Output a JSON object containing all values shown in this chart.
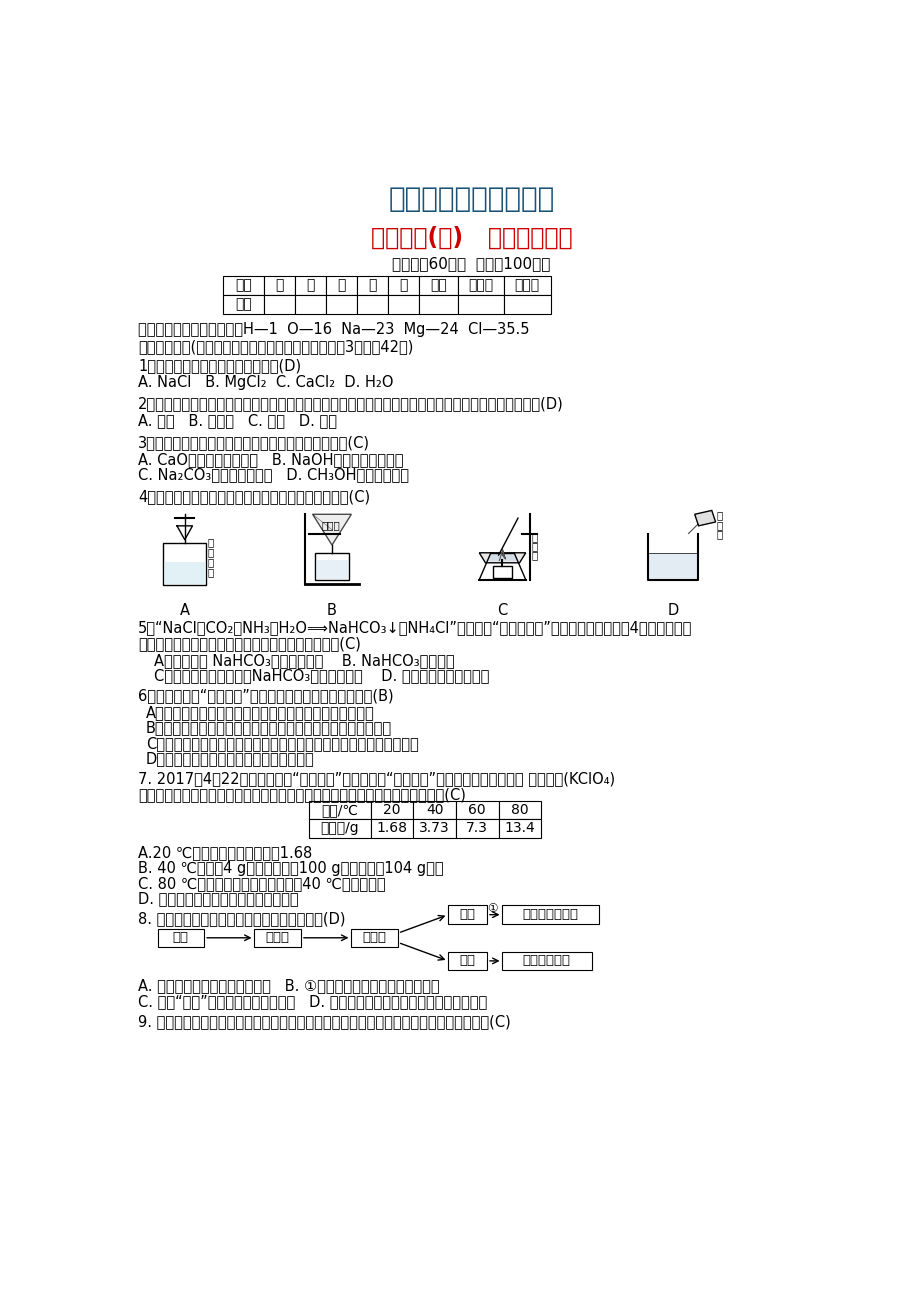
{
  "title1": "最新化学精品教学资料",
  "title1_color": "#1a5276",
  "title2": "单元测试(二)   海水中的化学",
  "title2_color": "#cc0000",
  "subtitle": "（时间：60分钟  总分：100分）",
  "subtitle_color": "#000000",
  "bg_color": "#ffffff",
  "text_color": "#000000",
  "table1_headers": [
    "题号",
    "一",
    "二",
    "三",
    "四",
    "五",
    "总分",
    "合分人",
    "复分人"
  ],
  "table1_row": [
    "得分",
    "",
    "",
    "",
    "",
    "",
    "",
    "",
    ""
  ],
  "atomic_mass": "可能用到的相对原子质量：H—1  O—16  Na—23  Mg—24  Cl—35.5",
  "section1": "一、我会选择(每小题只有一个选项符合题意，每小题3分，共42分)",
  "table2_headers": [
    "温度/℃",
    "20",
    "40",
    "60",
    "80"
  ],
  "table2_row": [
    "溶解度/g",
    "1.68",
    "3.73",
    "7.3",
    "13.4"
  ]
}
